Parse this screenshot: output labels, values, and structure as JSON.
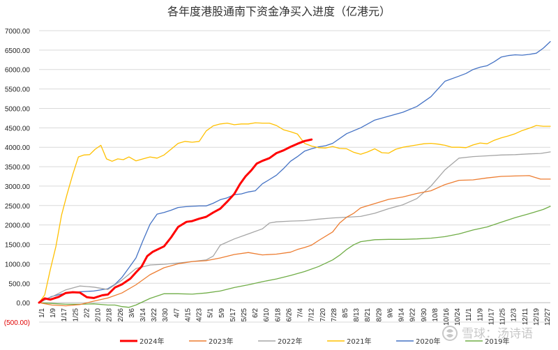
{
  "chart_data": {
    "type": "line",
    "title": "各年度港股通南下资金净买入进度（亿港元）",
    "xlabel": "",
    "ylabel": "",
    "ylim": [
      -500,
      7000
    ],
    "ytick_step": 500,
    "ytick_labels": [
      "(500.00)",
      "0.00",
      "500.00",
      "1000.00",
      "1500.00",
      "2000.00",
      "2500.00",
      "3000.00",
      "3500.00",
      "4000.00",
      "4500.00",
      "5000.00",
      "5500.00",
      "6000.00",
      "6500.00",
      "7000.00"
    ],
    "xlim": [
      1,
      365
    ],
    "x_unit": "day of year",
    "xtick_labels": [
      "1/1",
      "1/9",
      "1/17",
      "1/25",
      "2/2",
      "2/10",
      "2/18",
      "2/26",
      "3/6",
      "3/14",
      "3/22",
      "3/30",
      "4/7",
      "4/15",
      "4/23",
      "5/1",
      "5/9",
      "5/17",
      "5/25",
      "6/2",
      "6/10",
      "6/18",
      "6/26",
      "7/4",
      "7/12",
      "7/20",
      "7/28",
      "8/5",
      "8/13",
      "8/21",
      "8/29",
      "9/6",
      "9/14",
      "9/22",
      "9/30",
      "10/8",
      "10/16",
      "10/24",
      "11/1",
      "11/9",
      "11/17",
      "11/25",
      "12/3",
      "12/11",
      "12/19",
      "12/27"
    ],
    "grid": true,
    "legend_position": "bottom",
    "series": [
      {
        "name": "2024年",
        "color": "#ff0000",
        "width": 3,
        "points": [
          [
            1,
            0
          ],
          [
            5,
            110
          ],
          [
            9,
            80
          ],
          [
            15,
            150
          ],
          [
            20,
            250
          ],
          [
            25,
            270
          ],
          [
            30,
            260
          ],
          [
            35,
            140
          ],
          [
            40,
            120
          ],
          [
            46,
            190
          ],
          [
            50,
            210
          ],
          [
            55,
            390
          ],
          [
            60,
            470
          ],
          [
            66,
            620
          ],
          [
            70,
            780
          ],
          [
            74,
            930
          ],
          [
            78,
            1200
          ],
          [
            82,
            1310
          ],
          [
            86,
            1380
          ],
          [
            90,
            1450
          ],
          [
            95,
            1680
          ],
          [
            100,
            1950
          ],
          [
            106,
            2080
          ],
          [
            110,
            2100
          ],
          [
            115,
            2160
          ],
          [
            120,
            2210
          ],
          [
            125,
            2320
          ],
          [
            130,
            2420
          ],
          [
            135,
            2600
          ],
          [
            140,
            2800
          ],
          [
            144,
            3050
          ],
          [
            148,
            3250
          ],
          [
            152,
            3400
          ],
          [
            156,
            3580
          ],
          [
            160,
            3650
          ],
          [
            165,
            3720
          ],
          [
            170,
            3850
          ],
          [
            175,
            3920
          ],
          [
            180,
            4010
          ],
          [
            185,
            4090
          ],
          [
            190,
            4160
          ],
          [
            195,
            4200
          ]
        ]
      },
      {
        "name": "2023年",
        "color": "#ed7d31",
        "width": 1.3,
        "points": [
          [
            1,
            0
          ],
          [
            10,
            -60
          ],
          [
            20,
            -80
          ],
          [
            30,
            -50
          ],
          [
            40,
            40
          ],
          [
            50,
            120
          ],
          [
            60,
            250
          ],
          [
            70,
            460
          ],
          [
            80,
            720
          ],
          [
            90,
            900
          ],
          [
            100,
            1000
          ],
          [
            110,
            1060
          ],
          [
            120,
            1080
          ],
          [
            130,
            1150
          ],
          [
            140,
            1240
          ],
          [
            150,
            1290
          ],
          [
            160,
            1230
          ],
          [
            170,
            1250
          ],
          [
            180,
            1300
          ],
          [
            185,
            1370
          ],
          [
            190,
            1420
          ],
          [
            195,
            1480
          ],
          [
            200,
            1600
          ],
          [
            210,
            1820
          ],
          [
            215,
            2050
          ],
          [
            220,
            2200
          ],
          [
            225,
            2300
          ],
          [
            230,
            2440
          ],
          [
            240,
            2550
          ],
          [
            250,
            2660
          ],
          [
            260,
            2720
          ],
          [
            270,
            2810
          ],
          [
            280,
            2880
          ],
          [
            290,
            3040
          ],
          [
            300,
            3150
          ],
          [
            310,
            3160
          ],
          [
            320,
            3210
          ],
          [
            330,
            3250
          ],
          [
            340,
            3260
          ],
          [
            350,
            3270
          ],
          [
            358,
            3180
          ],
          [
            365,
            3180
          ]
        ]
      },
      {
        "name": "2022年",
        "color": "#a5a5a5",
        "width": 1.3,
        "points": [
          [
            1,
            0
          ],
          [
            10,
            150
          ],
          [
            20,
            330
          ],
          [
            30,
            430
          ],
          [
            40,
            400
          ],
          [
            50,
            340
          ],
          [
            60,
            580
          ],
          [
            70,
            880
          ],
          [
            80,
            970
          ],
          [
            90,
            990
          ],
          [
            100,
            1020
          ],
          [
            110,
            1060
          ],
          [
            120,
            1100
          ],
          [
            125,
            1200
          ],
          [
            130,
            1480
          ],
          [
            140,
            1640
          ],
          [
            150,
            1770
          ],
          [
            160,
            1900
          ],
          [
            165,
            2050
          ],
          [
            170,
            2080
          ],
          [
            180,
            2100
          ],
          [
            190,
            2110
          ],
          [
            200,
            2150
          ],
          [
            210,
            2180
          ],
          [
            220,
            2200
          ],
          [
            230,
            2220
          ],
          [
            240,
            2300
          ],
          [
            250,
            2420
          ],
          [
            260,
            2520
          ],
          [
            270,
            2680
          ],
          [
            280,
            3000
          ],
          [
            290,
            3420
          ],
          [
            300,
            3720
          ],
          [
            310,
            3760
          ],
          [
            320,
            3780
          ],
          [
            330,
            3800
          ],
          [
            340,
            3810
          ],
          [
            350,
            3830
          ],
          [
            358,
            3840
          ],
          [
            365,
            3880
          ]
        ]
      },
      {
        "name": "2021年",
        "color": "#ffc000",
        "width": 1.3,
        "points": [
          [
            1,
            0
          ],
          [
            5,
            200
          ],
          [
            9,
            850
          ],
          [
            13,
            1450
          ],
          [
            17,
            2250
          ],
          [
            21,
            2800
          ],
          [
            25,
            3300
          ],
          [
            29,
            3750
          ],
          [
            33,
            3800
          ],
          [
            37,
            3810
          ],
          [
            41,
            3950
          ],
          [
            45,
            4050
          ],
          [
            49,
            3700
          ],
          [
            53,
            3640
          ],
          [
            57,
            3700
          ],
          [
            61,
            3680
          ],
          [
            65,
            3750
          ],
          [
            70,
            3650
          ],
          [
            75,
            3700
          ],
          [
            80,
            3750
          ],
          [
            85,
            3720
          ],
          [
            90,
            3800
          ],
          [
            95,
            3950
          ],
          [
            100,
            4100
          ],
          [
            105,
            4150
          ],
          [
            110,
            4130
          ],
          [
            115,
            4150
          ],
          [
            120,
            4420
          ],
          [
            125,
            4550
          ],
          [
            130,
            4600
          ],
          [
            135,
            4620
          ],
          [
            140,
            4580
          ],
          [
            145,
            4600
          ],
          [
            150,
            4600
          ],
          [
            155,
            4630
          ],
          [
            160,
            4620
          ],
          [
            165,
            4620
          ],
          [
            170,
            4560
          ],
          [
            175,
            4450
          ],
          [
            180,
            4400
          ],
          [
            185,
            4340
          ],
          [
            190,
            4100
          ],
          [
            195,
            4030
          ],
          [
            200,
            3990
          ],
          [
            205,
            3980
          ],
          [
            210,
            4020
          ],
          [
            215,
            3970
          ],
          [
            220,
            3960
          ],
          [
            225,
            3870
          ],
          [
            230,
            3820
          ],
          [
            235,
            3880
          ],
          [
            240,
            3960
          ],
          [
            245,
            3860
          ],
          [
            250,
            3850
          ],
          [
            255,
            3950
          ],
          [
            260,
            4000
          ],
          [
            265,
            4030
          ],
          [
            270,
            4060
          ],
          [
            275,
            4090
          ],
          [
            280,
            4100
          ],
          [
            285,
            4080
          ],
          [
            290,
            4050
          ],
          [
            295,
            4000
          ],
          [
            300,
            4000
          ],
          [
            305,
            3990
          ],
          [
            310,
            4060
          ],
          [
            315,
            4110
          ],
          [
            320,
            4090
          ],
          [
            325,
            4180
          ],
          [
            330,
            4240
          ],
          [
            335,
            4290
          ],
          [
            340,
            4350
          ],
          [
            345,
            4430
          ],
          [
            350,
            4490
          ],
          [
            355,
            4560
          ],
          [
            360,
            4540
          ],
          [
            365,
            4540
          ]
        ]
      },
      {
        "name": "2020年",
        "color": "#4472c4",
        "width": 1.3,
        "points": [
          [
            1,
            0
          ],
          [
            10,
            160
          ],
          [
            20,
            250
          ],
          [
            30,
            280
          ],
          [
            40,
            300
          ],
          [
            50,
            360
          ],
          [
            55,
            470
          ],
          [
            60,
            650
          ],
          [
            65,
            900
          ],
          [
            70,
            1150
          ],
          [
            75,
            1600
          ],
          [
            80,
            2020
          ],
          [
            85,
            2280
          ],
          [
            90,
            2320
          ],
          [
            95,
            2380
          ],
          [
            100,
            2450
          ],
          [
            105,
            2470
          ],
          [
            110,
            2480
          ],
          [
            115,
            2490
          ],
          [
            120,
            2490
          ],
          [
            125,
            2560
          ],
          [
            130,
            2650
          ],
          [
            135,
            2700
          ],
          [
            140,
            2780
          ],
          [
            145,
            2800
          ],
          [
            150,
            2850
          ],
          [
            155,
            2880
          ],
          [
            160,
            3060
          ],
          [
            165,
            3170
          ],
          [
            170,
            3280
          ],
          [
            175,
            3450
          ],
          [
            180,
            3640
          ],
          [
            185,
            3760
          ],
          [
            190,
            3900
          ],
          [
            195,
            3960
          ],
          [
            200,
            4010
          ],
          [
            205,
            4040
          ],
          [
            210,
            4100
          ],
          [
            220,
            4350
          ],
          [
            230,
            4500
          ],
          [
            240,
            4700
          ],
          [
            250,
            4800
          ],
          [
            260,
            4900
          ],
          [
            270,
            5050
          ],
          [
            280,
            5300
          ],
          [
            290,
            5700
          ],
          [
            300,
            5830
          ],
          [
            305,
            5900
          ],
          [
            310,
            6000
          ],
          [
            315,
            6060
          ],
          [
            320,
            6100
          ],
          [
            325,
            6200
          ],
          [
            330,
            6320
          ],
          [
            335,
            6360
          ],
          [
            340,
            6380
          ],
          [
            345,
            6370
          ],
          [
            350,
            6390
          ],
          [
            355,
            6420
          ],
          [
            360,
            6550
          ],
          [
            365,
            6720
          ]
        ]
      },
      {
        "name": "2019年",
        "color": "#70ad47",
        "width": 1.3,
        "points": [
          [
            1,
            0
          ],
          [
            10,
            -20
          ],
          [
            20,
            -40
          ],
          [
            30,
            -40
          ],
          [
            40,
            -30
          ],
          [
            50,
            -60
          ],
          [
            55,
            -60
          ],
          [
            60,
            -100
          ],
          [
            65,
            -120
          ],
          [
            70,
            -60
          ],
          [
            80,
            110
          ],
          [
            90,
            230
          ],
          [
            100,
            230
          ],
          [
            110,
            220
          ],
          [
            120,
            250
          ],
          [
            130,
            300
          ],
          [
            140,
            390
          ],
          [
            150,
            460
          ],
          [
            160,
            540
          ],
          [
            170,
            610
          ],
          [
            180,
            700
          ],
          [
            190,
            800
          ],
          [
            200,
            930
          ],
          [
            210,
            1100
          ],
          [
            215,
            1220
          ],
          [
            220,
            1370
          ],
          [
            225,
            1490
          ],
          [
            230,
            1570
          ],
          [
            240,
            1620
          ],
          [
            250,
            1630
          ],
          [
            260,
            1630
          ],
          [
            270,
            1640
          ],
          [
            280,
            1660
          ],
          [
            290,
            1700
          ],
          [
            300,
            1770
          ],
          [
            310,
            1870
          ],
          [
            320,
            1950
          ],
          [
            330,
            2070
          ],
          [
            340,
            2190
          ],
          [
            350,
            2290
          ],
          [
            360,
            2400
          ],
          [
            365,
            2480
          ]
        ]
      }
    ]
  },
  "watermark": {
    "text": "雪球：汤诗语"
  }
}
